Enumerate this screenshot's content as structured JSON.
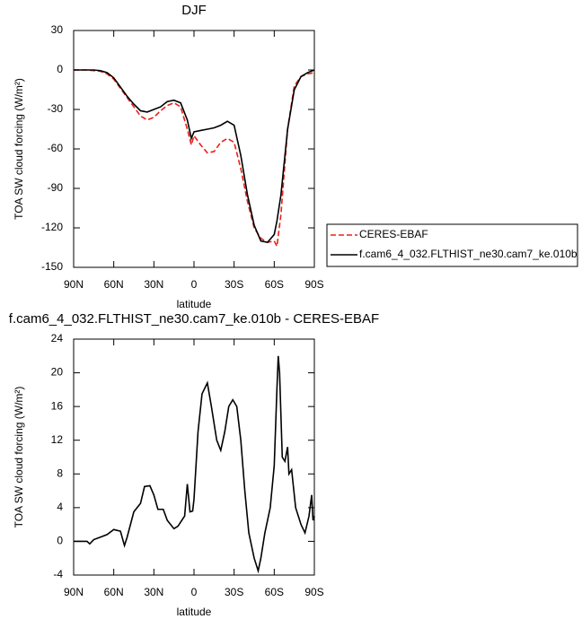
{
  "chart_data": [
    {
      "type": "line",
      "title": "DJF",
      "x_label": "latitude",
      "y_label": "TOA SW cloud forcing (W/m²)",
      "x": [
        90,
        85,
        80,
        75,
        70,
        65,
        60,
        55,
        50,
        45,
        40,
        35,
        30,
        25,
        20,
        15,
        10,
        5,
        2,
        0,
        -5,
        -10,
        -15,
        -20,
        -25,
        -30,
        -35,
        -40,
        -45,
        -50,
        -55,
        -60,
        -62,
        -65,
        -70,
        -75,
        -80,
        -85,
        -90
      ],
      "series": [
        {
          "name": "CERES-EBAF",
          "color": "#e8201c",
          "line_style": "dashed",
          "values": [
            0,
            0,
            0,
            -0.5,
            -1,
            -3,
            -7,
            -14,
            -21,
            -28,
            -35,
            -38,
            -36,
            -31,
            -27,
            -25,
            -28,
            -45,
            -57,
            -50,
            -57,
            -63,
            -62,
            -55,
            -52,
            -55,
            -75,
            -100,
            -120,
            -128,
            -131,
            -130,
            -134,
            -110,
            -45,
            -12,
            -5,
            -3,
            -2
          ]
        },
        {
          "name": "f.cam6_4_032.FLTHIST_ne30.cam7_ke.010b",
          "color": "#000000",
          "line_style": "solid",
          "values": [
            0,
            0,
            0,
            0,
            -0.5,
            -2,
            -6,
            -13,
            -20,
            -26,
            -31,
            -32,
            -30,
            -28,
            -24,
            -23,
            -25,
            -38,
            -52,
            -47,
            -46,
            -45,
            -44,
            -42,
            -39,
            -42,
            -65,
            -95,
            -118,
            -130,
            -131,
            -125,
            -115,
            -95,
            -45,
            -15,
            -5,
            -2,
            0
          ]
        }
      ],
      "xlim": [
        90,
        -90
      ],
      "xticks": [
        {
          "value": 90,
          "label": "90N"
        },
        {
          "value": 60,
          "label": "60N"
        },
        {
          "value": 30,
          "label": "30N"
        },
        0,
        {
          "value": -30,
          "label": "30S"
        },
        {
          "value": -60,
          "label": "60S"
        },
        {
          "value": -90,
          "label": "90S"
        }
      ],
      "ylim": [
        -150,
        30
      ],
      "yticks": [
        30,
        0,
        -30,
        -60,
        -90,
        -120,
        -150
      ],
      "legend": "right"
    },
    {
      "type": "line",
      "title": "f.cam6_4_032.FLTHIST_ne30.cam7_ke.010b - CERES-EBAF",
      "x_label": "latitude",
      "y_label": "TOA SW cloud forcing (W/m²)",
      "x": [
        90,
        85,
        80,
        78,
        75,
        70,
        65,
        60,
        55,
        52,
        50,
        45,
        40,
        37,
        33,
        30,
        27,
        23,
        20,
        15,
        12,
        7,
        5,
        3,
        1,
        0,
        -3,
        -6,
        -10,
        -13,
        -17,
        -20,
        -23,
        -26,
        -29,
        -32,
        -35,
        -38,
        -41,
        -45,
        -48,
        -50,
        -53,
        -57,
        -60,
        -62,
        -63,
        -64,
        -66,
        -68,
        -70,
        -71,
        -73,
        -76,
        -80,
        -83,
        -86,
        -88,
        -89,
        -90
      ],
      "color": "#000000",
      "values": [
        0,
        0,
        0,
        -0.3,
        0.2,
        0.5,
        0.8,
        1.4,
        1.2,
        -0.5,
        0.5,
        3.5,
        4.5,
        6.5,
        6.6,
        5.5,
        3.8,
        3.8,
        2.5,
        1.5,
        1.8,
        3,
        6.8,
        3.5,
        3.6,
        5,
        13,
        17.5,
        18.8,
        16,
        12,
        10.8,
        13,
        16,
        16.8,
        16,
        12,
        6,
        1,
        -2,
        -3.5,
        -2,
        1,
        4,
        9,
        18,
        22,
        20,
        10,
        9.5,
        11.2,
        8,
        8.5,
        4,
        2,
        1,
        3,
        5.5,
        2.5,
        3
      ],
      "xlim": [
        90,
        -90
      ],
      "xticks": [
        {
          "value": 90,
          "label": "90N"
        },
        {
          "value": 60,
          "label": "60N"
        },
        {
          "value": 30,
          "label": "30N"
        },
        0,
        {
          "value": -30,
          "label": "30S"
        },
        {
          "value": -60,
          "label": "60S"
        },
        {
          "value": -90,
          "label": "90S"
        }
      ],
      "ylim": [
        -4,
        24
      ],
      "yticks": [
        24,
        20,
        16,
        12,
        8,
        4,
        0,
        -4
      ]
    }
  ]
}
